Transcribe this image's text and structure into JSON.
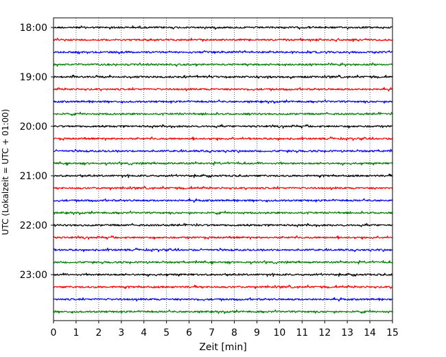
{
  "chart_data": {
    "type": "line",
    "title": "",
    "xlabel": "Zeit  [min]",
    "ylabel": "UTC (Lokalzeit = UTC + 01:00)",
    "xlim": [
      0,
      15
    ],
    "x_ticks": [
      "0",
      "1",
      "2",
      "3",
      "4",
      "5",
      "6",
      "7",
      "8",
      "9",
      "10",
      "11",
      "12",
      "13",
      "14",
      "15"
    ],
    "y_ticks": [
      "18:00",
      "19:00",
      "20:00",
      "21:00",
      "22:00",
      "23:00"
    ],
    "grid": "vertical dotted",
    "trace_interval_min": 15,
    "colors": [
      "#000000",
      "#ff0000",
      "#0000ff",
      "#007f00"
    ],
    "series": [
      {
        "start": "18:00",
        "color": "#000000"
      },
      {
        "start": "18:15",
        "color": "#ff0000"
      },
      {
        "start": "18:30",
        "color": "#0000ff"
      },
      {
        "start": "18:45",
        "color": "#007f00"
      },
      {
        "start": "19:00",
        "color": "#000000"
      },
      {
        "start": "19:15",
        "color": "#ff0000"
      },
      {
        "start": "19:30",
        "color": "#0000ff"
      },
      {
        "start": "19:45",
        "color": "#007f00"
      },
      {
        "start": "20:00",
        "color": "#000000"
      },
      {
        "start": "20:15",
        "color": "#ff0000"
      },
      {
        "start": "20:30",
        "color": "#0000ff"
      },
      {
        "start": "20:45",
        "color": "#007f00"
      },
      {
        "start": "21:00",
        "color": "#000000"
      },
      {
        "start": "21:15",
        "color": "#ff0000"
      },
      {
        "start": "21:30",
        "color": "#0000ff"
      },
      {
        "start": "21:45",
        "color": "#007f00"
      },
      {
        "start": "22:00",
        "color": "#000000"
      },
      {
        "start": "22:15",
        "color": "#ff0000"
      },
      {
        "start": "22:30",
        "color": "#0000ff"
      },
      {
        "start": "22:45",
        "color": "#007f00"
      },
      {
        "start": "23:00",
        "color": "#000000"
      },
      {
        "start": "23:15",
        "color": "#ff0000"
      },
      {
        "start": "23:30",
        "color": "#0000ff"
      },
      {
        "start": "23:45",
        "color": "#007f00"
      }
    ]
  }
}
